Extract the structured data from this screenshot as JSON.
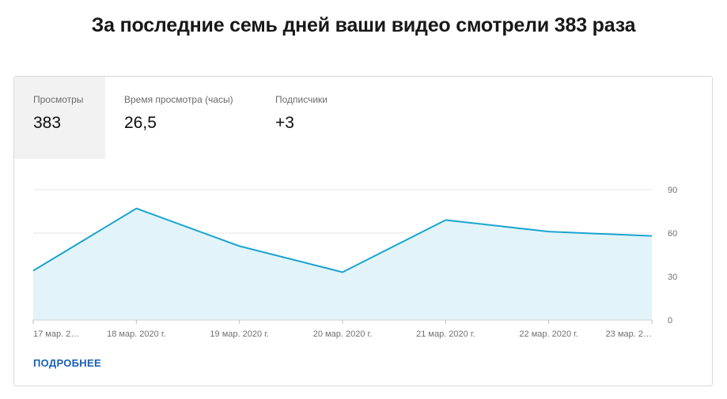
{
  "headline": "За последние семь дней ваши видео смотрели 383 раза",
  "tabs": [
    {
      "label": "Просмотры",
      "value": "383"
    },
    {
      "label": "Время просмотра (часы)",
      "value": "26,5"
    },
    {
      "label": "Подписчики",
      "value": "+3"
    }
  ],
  "more_link": "ПОДРОБНЕЕ",
  "colors": {
    "line": "#1aa5cf",
    "fill": "#e2f4fa",
    "grid": "#e6e6e6",
    "active_tab": "#f2f2f2",
    "link": "#1a5fb4"
  },
  "chart_data": {
    "type": "area",
    "categories": [
      "17 мар. 2…",
      "18 мар. 2020 г.",
      "19 мар. 2020 г.",
      "20 мар. 2020 г.",
      "21 мар. 2020 г.",
      "22 мар. 2020 г.",
      "23 мар. 2…"
    ],
    "values": [
      34,
      77,
      51,
      33,
      69,
      61,
      58
    ],
    "ylim": [
      0,
      90
    ],
    "yticks": [
      "0",
      "30",
      "60",
      "90"
    ],
    "grid": true
  }
}
